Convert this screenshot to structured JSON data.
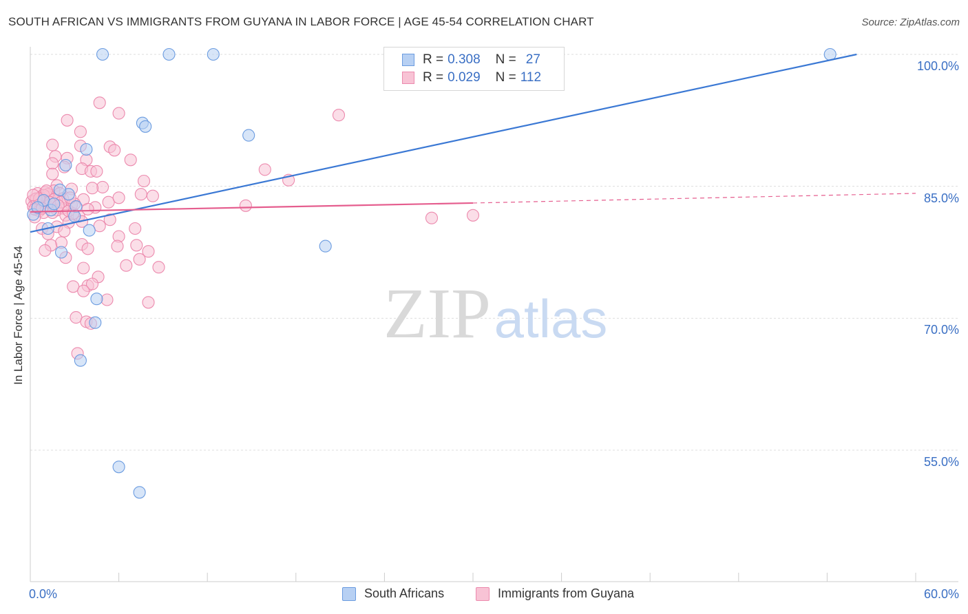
{
  "title": "SOUTH AFRICAN VS IMMIGRANTS FROM GUYANA IN LABOR FORCE | AGE 45-54 CORRELATION CHART",
  "source": "Source: ZipAtlas.com",
  "watermark": {
    "zip": "ZIP",
    "atlas": "atlas"
  },
  "legend": {
    "rows": [
      {
        "r_label": "R =",
        "r_value": "0.308",
        "n_label": "N =",
        "n_value": "27"
      },
      {
        "r_label": "R =",
        "r_value": "0.029",
        "n_label": "N =",
        "n_value": "112"
      }
    ]
  },
  "bottom_legend": [
    "South Africans",
    "Immigrants from Guyana"
  ],
  "colors": {
    "blue": "#3a78d4",
    "blue_fill": "#b7d0f3",
    "blue_stroke": "#6a9be0",
    "pink": "#e55d8e",
    "pink_fill": "#f8c3d5",
    "pink_stroke": "#ec89ad",
    "tick_label": "#3a6fc4",
    "grid": "#dddddd"
  },
  "chart_data": {
    "type": "scatter",
    "title": "SOUTH AFRICAN VS IMMIGRANTS FROM GUYANA IN LABOR FORCE | AGE 45-54 CORRELATION CHART",
    "xlabel": "",
    "ylabel": "In Labor Force | Age 45-54",
    "xlim": [
      0,
      60
    ],
    "ylim": [
      40,
      101.5
    ],
    "x_tick_labels": [
      "0.0%",
      "60.0%"
    ],
    "y_ticks": [
      55,
      70,
      85,
      100
    ],
    "y_tick_labels": [
      "55.0%",
      "70.0%",
      "85.0%",
      "100.0%"
    ],
    "grid": true,
    "series": [
      {
        "name": "South Africans",
        "color": "blue",
        "R": 0.308,
        "N": 27,
        "trend": {
          "x0": 0,
          "y0": 79.8,
          "x1": 56,
          "y1": 100.0,
          "dashed_to": null
        },
        "points": [
          [
            4.9,
            100.0
          ],
          [
            9.4,
            100.0
          ],
          [
            12.4,
            100.0
          ],
          [
            54.2,
            100.0
          ],
          [
            7.6,
            92.2
          ],
          [
            7.8,
            91.8
          ],
          [
            14.8,
            90.8
          ],
          [
            3.8,
            89.2
          ],
          [
            2.4,
            87.4
          ],
          [
            2.6,
            84.1
          ],
          [
            3.1,
            82.7
          ],
          [
            1.4,
            82.3
          ],
          [
            0.2,
            81.8
          ],
          [
            3.0,
            81.6
          ],
          [
            1.2,
            80.2
          ],
          [
            4.0,
            80.0
          ],
          [
            20.0,
            78.2
          ],
          [
            2.1,
            77.5
          ],
          [
            4.5,
            72.2
          ],
          [
            4.4,
            69.5
          ],
          [
            3.4,
            65.2
          ],
          [
            6.0,
            53.1
          ],
          [
            7.4,
            50.2
          ],
          [
            0.9,
            83.4
          ],
          [
            1.6,
            83.0
          ],
          [
            0.5,
            82.6
          ],
          [
            2.0,
            84.6
          ]
        ]
      },
      {
        "name": "Immigrants from Guyana",
        "color": "pink",
        "R": 0.029,
        "N": 112,
        "trend": {
          "x0": 0,
          "y0": 82.1,
          "x1": 30,
          "y1": 83.1,
          "dashed_to": [
            60,
            84.2
          ]
        },
        "points": [
          [
            4.7,
            94.5
          ],
          [
            6.0,
            93.3
          ],
          [
            20.9,
            93.1
          ],
          [
            2.5,
            92.5
          ],
          [
            3.4,
            91.2
          ],
          [
            1.5,
            89.7
          ],
          [
            3.4,
            89.6
          ],
          [
            5.4,
            89.5
          ],
          [
            5.7,
            89.1
          ],
          [
            1.7,
            88.4
          ],
          [
            2.5,
            88.2
          ],
          [
            3.8,
            88.0
          ],
          [
            6.8,
            88.0
          ],
          [
            1.5,
            87.6
          ],
          [
            2.3,
            87.2
          ],
          [
            3.5,
            87.0
          ],
          [
            4.1,
            86.7
          ],
          [
            4.5,
            86.7
          ],
          [
            15.9,
            86.9
          ],
          [
            1.5,
            86.4
          ],
          [
            7.7,
            85.6
          ],
          [
            17.5,
            85.7
          ],
          [
            4.9,
            84.9
          ],
          [
            1.8,
            85.1
          ],
          [
            4.2,
            84.8
          ],
          [
            2.8,
            84.7
          ],
          [
            1.6,
            84.5
          ],
          [
            1.0,
            84.3
          ],
          [
            2.0,
            84.2
          ],
          [
            0.5,
            84.2
          ],
          [
            7.5,
            84.1
          ],
          [
            8.3,
            83.9
          ],
          [
            0.8,
            83.9
          ],
          [
            1.2,
            83.8
          ],
          [
            2.2,
            83.6
          ],
          [
            3.6,
            83.5
          ],
          [
            0.3,
            83.5
          ],
          [
            1.0,
            83.4
          ],
          [
            1.8,
            83.4
          ],
          [
            0.1,
            83.3
          ],
          [
            0.6,
            83.2
          ],
          [
            1.4,
            83.0
          ],
          [
            5.3,
            83.2
          ],
          [
            2.8,
            82.9
          ],
          [
            0.4,
            82.9
          ],
          [
            1.1,
            82.8
          ],
          [
            0.2,
            82.7
          ],
          [
            4.4,
            82.6
          ],
          [
            2.2,
            82.5
          ],
          [
            1.8,
            82.3
          ],
          [
            0.6,
            82.2
          ],
          [
            0.9,
            82.0
          ],
          [
            1.5,
            82.0
          ],
          [
            2.4,
            81.7
          ],
          [
            3.3,
            81.6
          ],
          [
            0.3,
            81.5
          ],
          [
            5.4,
            81.2
          ],
          [
            3.5,
            81.0
          ],
          [
            2.6,
            80.9
          ],
          [
            4.7,
            80.5
          ],
          [
            1.8,
            80.4
          ],
          [
            0.8,
            80.2
          ],
          [
            7.1,
            80.2
          ],
          [
            2.3,
            79.9
          ],
          [
            1.2,
            79.6
          ],
          [
            6.0,
            79.3
          ],
          [
            2.1,
            78.6
          ],
          [
            1.4,
            78.3
          ],
          [
            3.5,
            78.4
          ],
          [
            5.9,
            78.2
          ],
          [
            7.2,
            78.3
          ],
          [
            3.9,
            77.9
          ],
          [
            1.0,
            77.7
          ],
          [
            8.0,
            77.6
          ],
          [
            2.4,
            76.9
          ],
          [
            7.4,
            76.7
          ],
          [
            6.5,
            76.0
          ],
          [
            3.6,
            75.7
          ],
          [
            8.7,
            75.8
          ],
          [
            4.6,
            74.7
          ],
          [
            3.9,
            73.7
          ],
          [
            2.9,
            73.6
          ],
          [
            4.2,
            73.9
          ],
          [
            3.6,
            73.1
          ],
          [
            5.2,
            72.1
          ],
          [
            8.0,
            71.8
          ],
          [
            3.1,
            70.1
          ],
          [
            3.8,
            69.6
          ],
          [
            4.1,
            69.4
          ],
          [
            3.2,
            66.0
          ],
          [
            27.2,
            81.4
          ],
          [
            30.0,
            81.7
          ],
          [
            14.6,
            82.8
          ],
          [
            2.6,
            82.2
          ],
          [
            1.2,
            84.1
          ],
          [
            0.7,
            83.7
          ],
          [
            2.9,
            81.9
          ],
          [
            6.0,
            83.7
          ],
          [
            3.0,
            83.0
          ],
          [
            0.9,
            84.0
          ],
          [
            0.4,
            83.6
          ],
          [
            1.6,
            83.5
          ],
          [
            2.1,
            83.2
          ],
          [
            0.3,
            82.4
          ],
          [
            3.9,
            82.4
          ],
          [
            1.3,
            83.2
          ],
          [
            0.6,
            83.6
          ],
          [
            1.9,
            82.8
          ],
          [
            2.7,
            83.7
          ],
          [
            0.8,
            82.5
          ],
          [
            1.1,
            84.5
          ],
          [
            0.2,
            84.0
          ]
        ]
      }
    ]
  }
}
